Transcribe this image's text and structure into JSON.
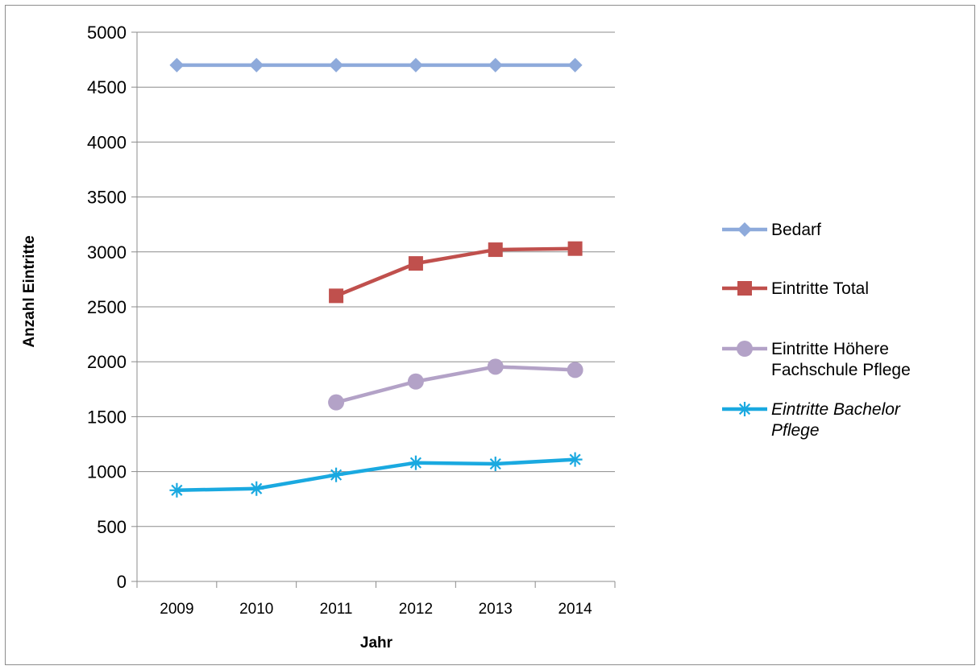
{
  "chart_data": {
    "type": "line",
    "xlabel": "Jahr",
    "ylabel": "Anzahl Eintritte",
    "ylim": [
      0,
      5000
    ],
    "yticks": [
      0,
      500,
      1000,
      1500,
      2000,
      2500,
      3000,
      3500,
      4000,
      4500,
      5000
    ],
    "categories": [
      "2009",
      "2010",
      "2011",
      "2012",
      "2013",
      "2014"
    ],
    "grid": "horizontal",
    "legend_position": "right",
    "series": [
      {
        "name": "Bedarf",
        "values": [
          4700,
          4700,
          4700,
          4700,
          4700,
          4700
        ],
        "color": "#8eaadb",
        "marker": "diamond",
        "italic": false
      },
      {
        "name": "Eintritte Total",
        "values": [
          null,
          null,
          2600,
          2895,
          3020,
          3030
        ],
        "color": "#c0504d",
        "marker": "square",
        "italic": false
      },
      {
        "name": "Eintritte Höhere Fachschule Pflege",
        "legend_lines": [
          "Eintritte Höhere",
          "Fachschule Pflege"
        ],
        "values": [
          null,
          null,
          1630,
          1820,
          1955,
          1925
        ],
        "color": "#b3a2c7",
        "marker": "circle",
        "italic": false
      },
      {
        "name": "Eintritte Bachelor Pflege",
        "legend_lines": [
          "Eintritte Bachelor",
          "Pflege"
        ],
        "values": [
          830,
          845,
          970,
          1080,
          1070,
          1110
        ],
        "color": "#1aa9e0",
        "marker": "asterisk",
        "italic": true
      }
    ]
  }
}
